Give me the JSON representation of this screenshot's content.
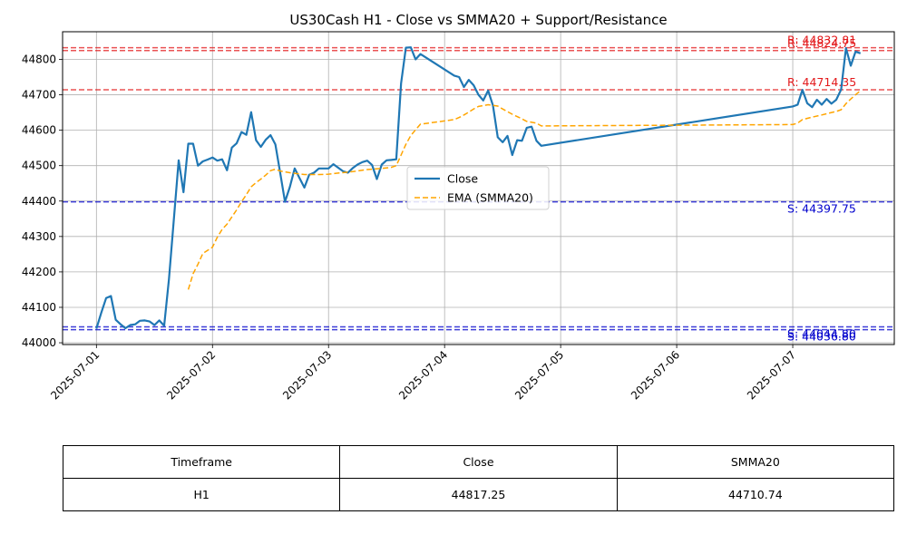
{
  "chart_data": {
    "type": "line",
    "title": "US30Cash H1 - Close vs SMMA20 + Support/Resistance",
    "xlabel": "",
    "ylabel": "",
    "x_range": [
      "2025-06-30T17:00",
      "2025-07-07T21:00"
    ],
    "ylim": [
      43995,
      44878
    ],
    "grid": true,
    "legend_position": "center",
    "x_ticks": [
      "2025-07-01",
      "2025-07-02",
      "2025-07-03",
      "2025-07-04",
      "2025-07-05",
      "2025-07-06",
      "2025-07-07"
    ],
    "y_ticks": [
      44000,
      44100,
      44200,
      44300,
      44400,
      44500,
      44600,
      44700,
      44800
    ],
    "series": [
      {
        "name": "Close",
        "color": "#1f77b4",
        "style": "solid",
        "points": [
          [
            "2025-07-01T00:00",
            44040
          ],
          [
            "2025-07-01T01:00",
            44085
          ],
          [
            "2025-07-01T02:00",
            44126
          ],
          [
            "2025-07-01T03:00",
            44132
          ],
          [
            "2025-07-01T04:00",
            44065
          ],
          [
            "2025-07-01T05:00",
            44052
          ],
          [
            "2025-07-01T06:00",
            44041
          ],
          [
            "2025-07-01T07:00",
            44050
          ],
          [
            "2025-07-01T08:00",
            44052
          ],
          [
            "2025-07-01T09:00",
            44062
          ],
          [
            "2025-07-01T10:00",
            44063
          ],
          [
            "2025-07-01T11:00",
            44060
          ],
          [
            "2025-07-01T12:00",
            44050
          ],
          [
            "2025-07-01T13:00",
            44063
          ],
          [
            "2025-07-01T14:00",
            44048
          ],
          [
            "2025-07-01T15:00",
            44180
          ],
          [
            "2025-07-01T17:00",
            44515
          ],
          [
            "2025-07-01T18:00",
            44425
          ],
          [
            "2025-07-01T19:00",
            44562
          ],
          [
            "2025-07-01T20:00",
            44562
          ],
          [
            "2025-07-01T21:00",
            44500
          ],
          [
            "2025-07-01T22:00",
            44512
          ],
          [
            "2025-07-01T23:00",
            44517
          ],
          [
            "2025-07-02T00:00",
            44523
          ],
          [
            "2025-07-02T01:00",
            44514
          ],
          [
            "2025-07-02T02:00",
            44518
          ],
          [
            "2025-07-02T03:00",
            44487
          ],
          [
            "2025-07-02T04:00",
            44551
          ],
          [
            "2025-07-02T05:00",
            44563
          ],
          [
            "2025-07-02T06:00",
            44595
          ],
          [
            "2025-07-02T07:00",
            44587
          ],
          [
            "2025-07-02T08:00",
            44651
          ],
          [
            "2025-07-02T09:00",
            44572
          ],
          [
            "2025-07-02T10:00",
            44553
          ],
          [
            "2025-07-02T11:00",
            44573
          ],
          [
            "2025-07-02T12:00",
            44586
          ],
          [
            "2025-07-02T13:00",
            44560
          ],
          [
            "2025-07-02T14:00",
            44480
          ],
          [
            "2025-07-02T15:00",
            44398
          ],
          [
            "2025-07-02T16:00",
            44440
          ],
          [
            "2025-07-02T17:00",
            44492
          ],
          [
            "2025-07-02T18:00",
            44465
          ],
          [
            "2025-07-02T19:00",
            44438
          ],
          [
            "2025-07-02T20:00",
            44474
          ],
          [
            "2025-07-02T21:00",
            44480
          ],
          [
            "2025-07-02T22:00",
            44492
          ],
          [
            "2025-07-02T23:00",
            44492
          ],
          [
            "2025-07-03T00:00",
            44492
          ],
          [
            "2025-07-03T01:00",
            44504
          ],
          [
            "2025-07-03T02:00",
            44494
          ],
          [
            "2025-07-03T03:00",
            44484
          ],
          [
            "2025-07-03T04:00",
            44480
          ],
          [
            "2025-07-03T05:00",
            44493
          ],
          [
            "2025-07-03T06:00",
            44503
          ],
          [
            "2025-07-03T07:00",
            44510
          ],
          [
            "2025-07-03T08:00",
            44514
          ],
          [
            "2025-07-03T09:00",
            44502
          ],
          [
            "2025-07-03T10:00",
            44462
          ],
          [
            "2025-07-03T11:00",
            44503
          ],
          [
            "2025-07-03T12:00",
            44515
          ],
          [
            "2025-07-03T13:00",
            44516
          ],
          [
            "2025-07-03T14:00",
            44518
          ],
          [
            "2025-07-03T15:00",
            44732
          ],
          [
            "2025-07-03T16:00",
            44833
          ],
          [
            "2025-07-03T17:00",
            44834
          ],
          [
            "2025-07-03T18:00",
            44800
          ],
          [
            "2025-07-03T19:00",
            44815
          ],
          [
            "2025-07-04T02:00",
            44754
          ],
          [
            "2025-07-04T03:00",
            44750
          ],
          [
            "2025-07-04T04:00",
            44722
          ],
          [
            "2025-07-04T05:00",
            44742
          ],
          [
            "2025-07-04T06:00",
            44727
          ],
          [
            "2025-07-04T07:00",
            44700
          ],
          [
            "2025-07-04T08:00",
            44684
          ],
          [
            "2025-07-04T09:00",
            44712
          ],
          [
            "2025-07-04T10:00",
            44670
          ],
          [
            "2025-07-04T11:00",
            44580
          ],
          [
            "2025-07-04T12:00",
            44566
          ],
          [
            "2025-07-04T13:00",
            44584
          ],
          [
            "2025-07-04T14:00",
            44530
          ],
          [
            "2025-07-04T15:00",
            44572
          ],
          [
            "2025-07-04T16:00",
            44570
          ],
          [
            "2025-07-04T17:00",
            44607
          ],
          [
            "2025-07-04T18:00",
            44610
          ],
          [
            "2025-07-04T19:00",
            44570
          ],
          [
            "2025-07-04T20:00",
            44556
          ],
          [
            "2025-07-07T00:00",
            44667
          ],
          [
            "2025-07-07T01:00",
            44672
          ],
          [
            "2025-07-07T02:00",
            44714
          ],
          [
            "2025-07-07T03:00",
            44676
          ],
          [
            "2025-07-07T04:00",
            44665
          ],
          [
            "2025-07-07T05:00",
            44686
          ],
          [
            "2025-07-07T06:00",
            44672
          ],
          [
            "2025-07-07T07:00",
            44688
          ],
          [
            "2025-07-07T08:00",
            44675
          ],
          [
            "2025-07-07T09:00",
            44686
          ],
          [
            "2025-07-07T10:00",
            44715
          ],
          [
            "2025-07-07T11:00",
            44832
          ],
          [
            "2025-07-07T12:00",
            44782
          ],
          [
            "2025-07-07T13:00",
            44822
          ],
          [
            "2025-07-07T14:00",
            44817
          ]
        ]
      },
      {
        "name": "EMA (SMMA20)",
        "color": "#ffa500",
        "style": "dashed",
        "points": [
          [
            "2025-07-01T19:00",
            44150
          ],
          [
            "2025-07-01T20:00",
            44195
          ],
          [
            "2025-07-01T21:00",
            44222
          ],
          [
            "2025-07-01T22:00",
            44252
          ],
          [
            "2025-07-02T00:00",
            44270
          ],
          [
            "2025-07-02T01:00",
            44298
          ],
          [
            "2025-07-02T02:00",
            44320
          ],
          [
            "2025-07-02T03:00",
            44335
          ],
          [
            "2025-07-02T04:00",
            44355
          ],
          [
            "2025-07-02T05:00",
            44375
          ],
          [
            "2025-07-02T06:00",
            44398
          ],
          [
            "2025-07-02T07:00",
            44418
          ],
          [
            "2025-07-02T08:00",
            44440
          ],
          [
            "2025-07-02T09:00",
            44452
          ],
          [
            "2025-07-02T10:00",
            44462
          ],
          [
            "2025-07-02T11:00",
            44473
          ],
          [
            "2025-07-02T12:00",
            44486
          ],
          [
            "2025-07-02T13:00",
            44490
          ],
          [
            "2025-07-02T14:00",
            44485
          ],
          [
            "2025-07-02T16:00",
            44480
          ],
          [
            "2025-07-02T19:00",
            44475
          ],
          [
            "2025-07-02T22:00",
            44475
          ],
          [
            "2025-07-03T00:00",
            44476
          ],
          [
            "2025-07-03T02:00",
            44479
          ],
          [
            "2025-07-03T05:00",
            44483
          ],
          [
            "2025-07-03T08:00",
            44489
          ],
          [
            "2025-07-03T11:00",
            44492
          ],
          [
            "2025-07-03T13:00",
            44495
          ],
          [
            "2025-07-03T14:00",
            44500
          ],
          [
            "2025-07-03T15:00",
            44530
          ],
          [
            "2025-07-03T16:00",
            44560
          ],
          [
            "2025-07-03T17:00",
            44585
          ],
          [
            "2025-07-03T18:00",
            44601
          ],
          [
            "2025-07-03T19:00",
            44617
          ],
          [
            "2025-07-04T02:00",
            44630
          ],
          [
            "2025-07-04T03:00",
            44636
          ],
          [
            "2025-07-04T04:00",
            44643
          ],
          [
            "2025-07-04T05:00",
            44651
          ],
          [
            "2025-07-04T06:00",
            44660
          ],
          [
            "2025-07-04T07:00",
            44667
          ],
          [
            "2025-07-04T09:00",
            44672
          ],
          [
            "2025-07-04T11:00",
            44668
          ],
          [
            "2025-07-04T12:00",
            44660
          ],
          [
            "2025-07-04T14:00",
            44645
          ],
          [
            "2025-07-04T16:00",
            44632
          ],
          [
            "2025-07-04T17:00",
            44625
          ],
          [
            "2025-07-04T19:00",
            44620
          ],
          [
            "2025-07-04T20:00",
            44612
          ],
          [
            "2025-07-07T00:00",
            44616
          ],
          [
            "2025-07-07T01:00",
            44620
          ],
          [
            "2025-07-07T02:00",
            44630
          ],
          [
            "2025-07-07T04:00",
            44637
          ],
          [
            "2025-07-07T06:00",
            44643
          ],
          [
            "2025-07-07T08:00",
            44650
          ],
          [
            "2025-07-07T09:00",
            44653
          ],
          [
            "2025-07-07T10:00",
            44658
          ],
          [
            "2025-07-07T11:00",
            44675
          ],
          [
            "2025-07-07T12:00",
            44688
          ],
          [
            "2025-07-07T13:00",
            44700
          ],
          [
            "2025-07-07T14:00",
            44712
          ]
        ]
      }
    ],
    "levels": [
      {
        "type": "resistance",
        "label": "R: 44832.81",
        "value": 44832.81,
        "color": "#e31a1c"
      },
      {
        "type": "resistance",
        "label": "R: 44824.75",
        "value": 44824.75,
        "color": "#e31a1c"
      },
      {
        "type": "resistance",
        "label": "R: 44714.35",
        "value": 44714.35,
        "color": "#e31a1c"
      },
      {
        "type": "support",
        "label": "S: 44397.75",
        "value": 44397.75,
        "color": "#0000cc"
      },
      {
        "type": "support",
        "label": "S: 44044.80",
        "value": 44044.8,
        "color": "#0000cc"
      },
      {
        "type": "support",
        "label": "S: 44036.80",
        "value": 44036.8,
        "color": "#0000cc"
      }
    ]
  },
  "table": {
    "headers": [
      "Timeframe",
      "Close",
      "SMMA20"
    ],
    "rows": [
      [
        "H1",
        "44817.25",
        "44710.74"
      ]
    ]
  }
}
